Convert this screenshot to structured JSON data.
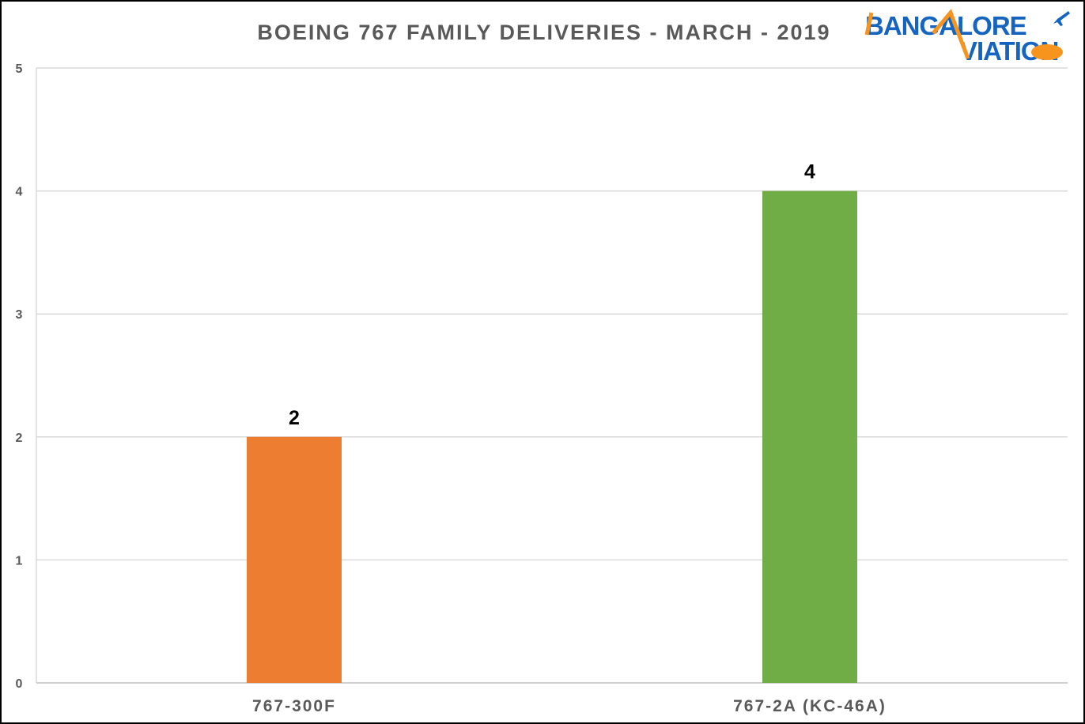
{
  "chart_data": {
    "type": "bar",
    "title": "BOEING  767 FAMILY  DELIVERIES  - MARCH  - 2019",
    "categories": [
      "767-300F",
      "767-2A (KC-46A)"
    ],
    "values": [
      2,
      4
    ],
    "colors": [
      "#ED7D31",
      "#70AD47"
    ],
    "ylim": [
      0,
      5
    ],
    "yticks": [
      "0",
      "1",
      "2",
      "3",
      "4",
      "5"
    ],
    "xlabel": "",
    "ylabel": "",
    "grid": true,
    "legend": "none"
  },
  "logo": {
    "text_line1": "BANGALORE",
    "text_line2": "VIATION",
    "color_orange": "#F7941D",
    "color_blue": "#1565C0"
  }
}
